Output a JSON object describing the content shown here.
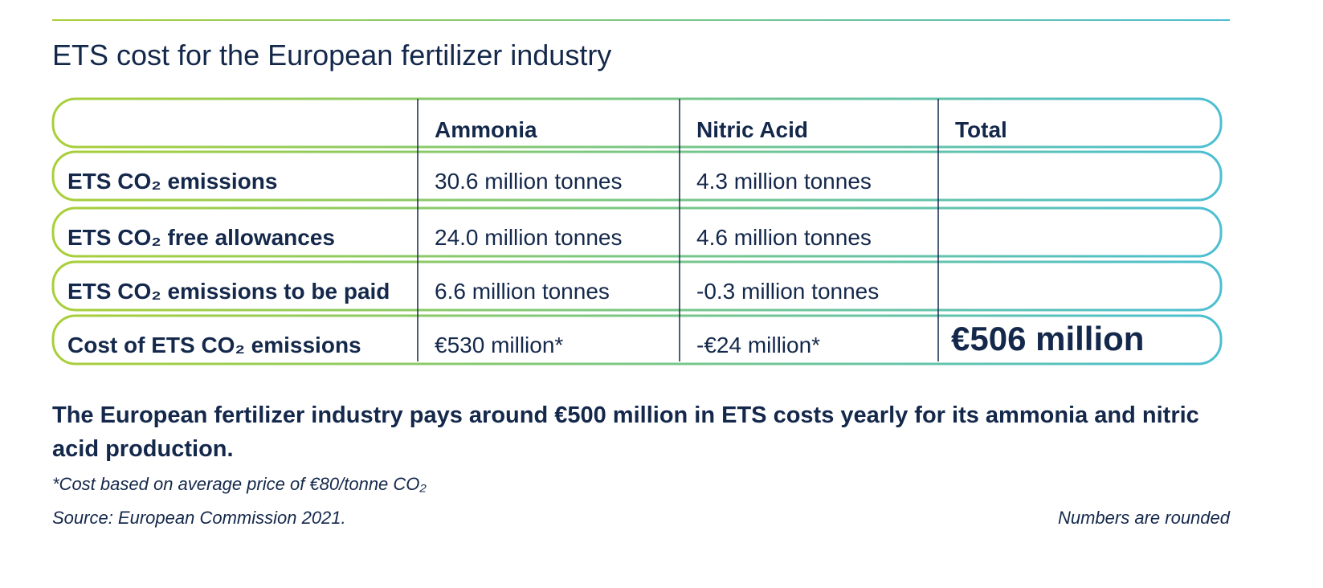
{
  "header": {
    "title": "ETS cost for the European fertilizer industry"
  },
  "table": {
    "columns": [
      "Ammonia",
      "Nitric Acid",
      "Total"
    ],
    "rows": [
      [
        "ETS CO₂ emissions",
        "30.6 million tonnes",
        "4.3 million tonnes"
      ],
      [
        "ETS CO₂ free allowances",
        "24.0 million tonnes",
        "4.6 million tonnes"
      ],
      [
        "ETS CO₂ emissions to be paid",
        "6.6 million tonnes",
        "-0.3 million tonnes"
      ],
      [
        "Cost of ETS CO₂ emissions",
        "€530 million*",
        "-€24 million*",
        "€506 million"
      ]
    ]
  },
  "summary": "The European fertilizer industry pays around €500 million in ETS costs yearly for its ammonia and nitric acid production.",
  "footnote": "*Cost based on average price of €80/tonne CO₂",
  "source": "Source: European Commission 2021.",
  "note": "Numbers are rounded"
}
